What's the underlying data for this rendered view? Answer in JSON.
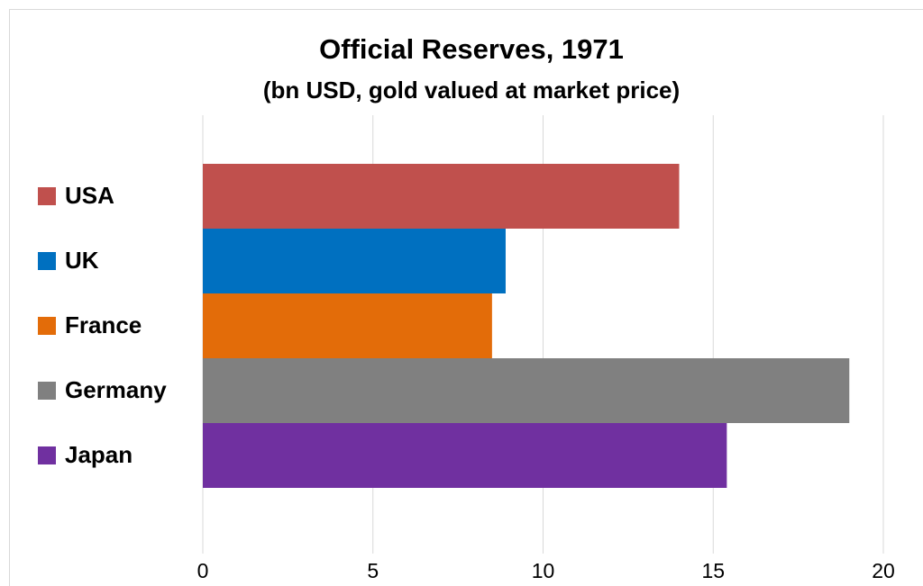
{
  "chart_data": {
    "type": "barh",
    "title": "Official Reserves, 1971",
    "subtitle": "(bn USD, gold valued at market price)",
    "categories": [
      "USA",
      "UK",
      "France",
      "Germany",
      "Japan"
    ],
    "values": [
      14,
      8.9,
      8.5,
      19,
      15.4
    ],
    "colors": [
      "#c0504d",
      "#0070c0",
      "#e36c09",
      "#808080",
      "#7030a0"
    ],
    "xlim": [
      0,
      20
    ],
    "xticks": [
      0,
      5,
      10,
      15,
      20
    ],
    "grid": true
  }
}
